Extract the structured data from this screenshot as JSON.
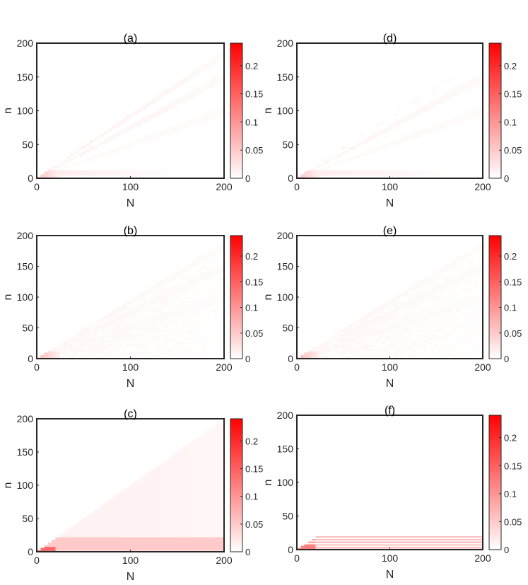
{
  "chart_data": [
    {
      "type": "heatmap",
      "panel": "a",
      "title": "(a)",
      "xlabel": "N",
      "ylabel": "n",
      "xlim": [
        0,
        200
      ],
      "ylim": [
        0,
        200
      ],
      "xticks": [
        "0",
        "100",
        "200"
      ],
      "yticks": [
        "0",
        "50",
        "100",
        "150",
        "200"
      ],
      "colorbar": {
        "range": [
          0,
          0.24
        ],
        "ticks": [
          "0",
          "0.05",
          "0.1",
          "0.15",
          "0.2"
        ],
        "colors": [
          "#ffffff",
          "#ff0000"
        ]
      },
      "pattern": {
        "kind": "diagonal",
        "n_max_frac_of_N": 0.95,
        "n_max_reach": 195,
        "band_levels": [
          0.006,
          0.012,
          0.016
        ],
        "low_band_n": [
          6,
          9,
          11
        ],
        "low_band_N_end": 140,
        "low_band_level": 0.02,
        "origin_peak": 0.06,
        "speckle": 0
      }
    },
    {
      "type": "heatmap",
      "panel": "b",
      "title": "(b)",
      "xlabel": "N",
      "ylabel": "n",
      "xlim": [
        0,
        200
      ],
      "ylim": [
        0,
        200
      ],
      "xticks": [
        "0",
        "100",
        "200"
      ],
      "yticks": [
        "0",
        "50",
        "100",
        "150",
        "200"
      ],
      "colorbar": {
        "range": [
          0,
          0.24
        ],
        "ticks": [
          "0",
          "0.05",
          "0.1",
          "0.15",
          "0.2"
        ],
        "colors": [
          "#ffffff",
          "#ff0000"
        ]
      },
      "pattern": {
        "kind": "speckled-wedge",
        "n_max_frac_of_N": 0.95,
        "n_max_reach": 195,
        "band_levels": [
          0.006,
          0.01,
          0.012
        ],
        "low_band_n": [],
        "low_band_N_end": 0,
        "low_band_level": 0,
        "origin_peak": 0.07,
        "speckle": 0.012
      }
    },
    {
      "type": "heatmap",
      "panel": "c",
      "title": "(c)",
      "xlabel": "N",
      "ylabel": "n",
      "xlim": [
        0,
        200
      ],
      "ylim": [
        0,
        200
      ],
      "xticks": [
        "0",
        "100",
        "200"
      ],
      "yticks": [
        "0",
        "50",
        "100",
        "150",
        "200"
      ],
      "colorbar": {
        "range": [
          0,
          0.24
        ],
        "ticks": [
          "0",
          "0.05",
          "0.1",
          "0.15",
          "0.2"
        ],
        "colors": [
          "#ffffff",
          "#ff0000"
        ]
      },
      "pattern": {
        "kind": "filled-wedge",
        "fill_level": 0.014,
        "column_steps": [
          25,
          90,
          130,
          165
        ],
        "low_band_n": [
          4,
          8,
          12,
          16,
          20
        ],
        "low_band_N_end": 200,
        "low_band_level": 0.05,
        "origin_peak": 0.14,
        "speckle": 0
      }
    },
    {
      "type": "heatmap",
      "panel": "d",
      "title": "(d)",
      "xlabel": "N",
      "ylabel": "n",
      "xlim": [
        0,
        200
      ],
      "ylim": [
        0,
        200
      ],
      "xticks": [
        "0",
        "100",
        "200"
      ],
      "yticks": [
        "0",
        "50",
        "100",
        "150",
        "200"
      ],
      "colorbar": {
        "range": [
          0,
          0.24
        ],
        "ticks": [
          "0",
          "0.05",
          "0.1",
          "0.15",
          "0.2"
        ],
        "colors": [
          "#ffffff",
          "#ff0000"
        ]
      },
      "pattern": {
        "kind": "diagonal",
        "n_max_frac_of_N": 0.9,
        "n_max_reach": 150,
        "band_levels": [
          0.006,
          0.012,
          0.016
        ],
        "low_band_n": [
          5,
          8,
          11
        ],
        "low_band_N_end": 160,
        "low_band_level": 0.02,
        "origin_peak": 0.06,
        "speckle": 0
      }
    },
    {
      "type": "heatmap",
      "panel": "e",
      "title": "(e)",
      "xlabel": "N",
      "ylabel": "n",
      "xlim": [
        0,
        200
      ],
      "ylim": [
        0,
        200
      ],
      "xticks": [
        "0",
        "100",
        "200"
      ],
      "yticks": [
        "0",
        "50",
        "100",
        "150",
        "200"
      ],
      "colorbar": {
        "range": [
          0,
          0.24
        ],
        "ticks": [
          "0",
          "0.05",
          "0.1",
          "0.15",
          "0.2"
        ],
        "colors": [
          "#ffffff",
          "#ff0000"
        ]
      },
      "pattern": {
        "kind": "speckled-wedge",
        "n_max_frac_of_N": 0.95,
        "n_max_reach": 190,
        "band_levels": [
          0.006,
          0.01,
          0.012
        ],
        "low_band_n": [],
        "low_band_N_end": 0,
        "low_band_level": 0,
        "origin_peak": 0.07,
        "speckle": 0.012
      }
    },
    {
      "type": "heatmap",
      "panel": "f",
      "title": "(f)",
      "xlabel": "N",
      "ylabel": "n",
      "xlim": [
        0,
        200
      ],
      "ylim": [
        0,
        200
      ],
      "xticks": [
        "0",
        "100",
        "200"
      ],
      "yticks": [
        "0",
        "50",
        "100",
        "150",
        "200"
      ],
      "colorbar": {
        "range": [
          0,
          0.24
        ],
        "ticks": [
          "0",
          "0.05",
          "0.1",
          "0.15",
          "0.2"
        ],
        "colors": [
          "#ffffff",
          "#ff0000"
        ]
      },
      "pattern": {
        "kind": "low-bands-only",
        "low_band_n": [
          3,
          7,
          11,
          15,
          19
        ],
        "low_band_N_start": 20,
        "low_band_N_end": 200,
        "low_band_level": 0.06,
        "origin_peak": 0.12,
        "speckle": 0
      }
    }
  ]
}
